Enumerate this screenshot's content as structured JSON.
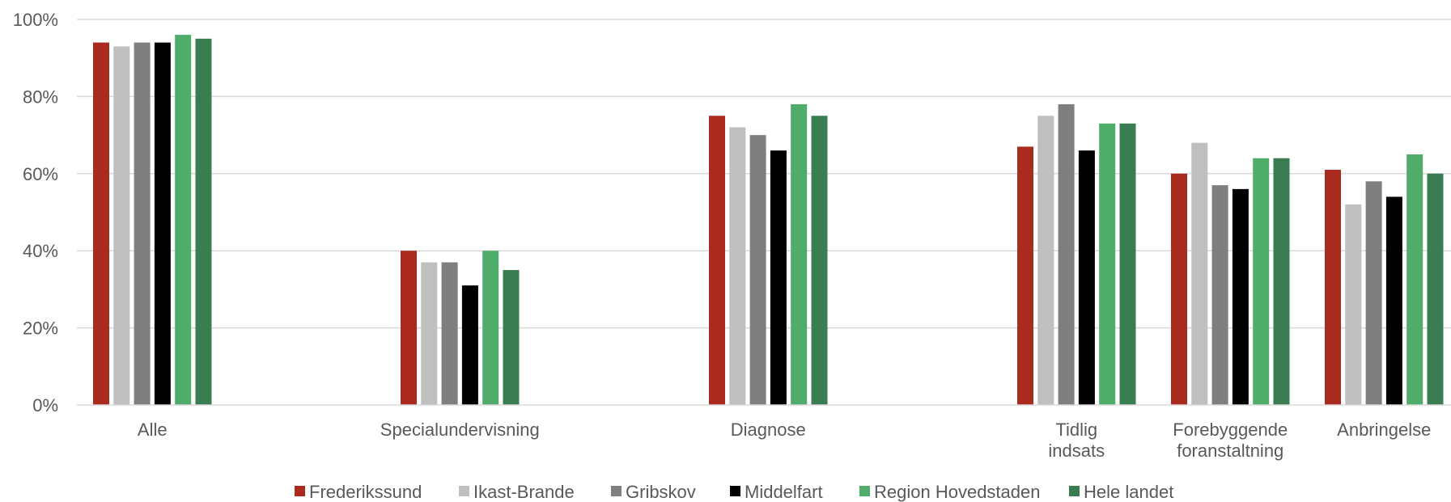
{
  "chart_data": {
    "type": "bar",
    "categories": [
      "Alle",
      "Specialundervisning",
      "Diagnose",
      "Tidlig\nindsats",
      "Forebyggende\nforanstaltning",
      "Anbringelse"
    ],
    "series": [
      {
        "name": "Frederikssund",
        "color": "#aa2a1f",
        "values": [
          94,
          40,
          75,
          67,
          60,
          61
        ]
      },
      {
        "name": "Ikast-Brande",
        "color": "#bfbfbf",
        "values": [
          93,
          37,
          72,
          75,
          68,
          52
        ]
      },
      {
        "name": "Gribskov",
        "color": "#7f7f7f",
        "values": [
          94,
          37,
          70,
          78,
          57,
          58
        ]
      },
      {
        "name": "Middelfart",
        "color": "#000000",
        "values": [
          94,
          31,
          66,
          66,
          56,
          54
        ]
      },
      {
        "name": "Region Hovedstaden",
        "color": "#4fac6a",
        "values": [
          96,
          40,
          78,
          73,
          64,
          65
        ]
      },
      {
        "name": "Hele landet",
        "color": "#3a7d52",
        "values": [
          95,
          35,
          75,
          73,
          64,
          60
        ]
      }
    ],
    "y_ticks": [
      "0%",
      "20%",
      "40%",
      "60%",
      "80%",
      "100%"
    ],
    "ylim": [
      0,
      100
    ],
    "grid": true,
    "legend_position": "bottom"
  }
}
